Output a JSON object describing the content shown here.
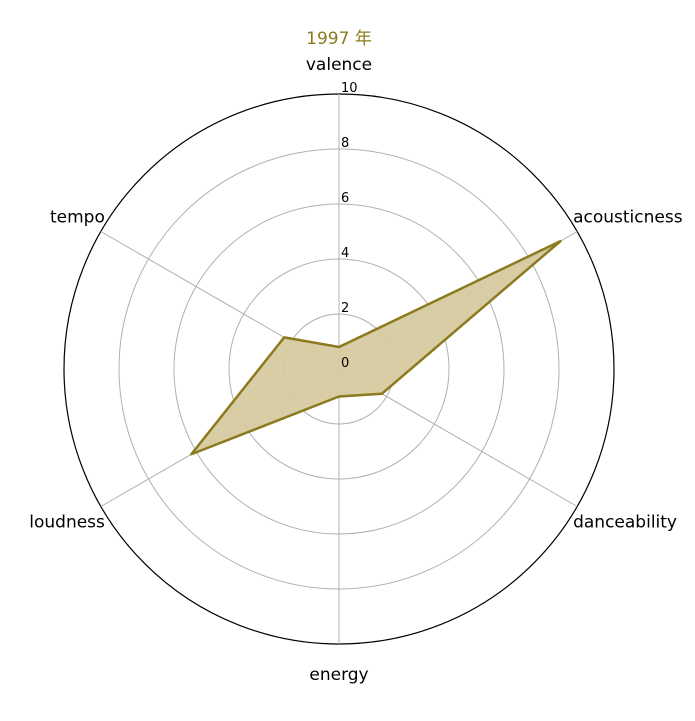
{
  "chart_data": {
    "type": "radar",
    "title": "1997 年",
    "axes": [
      "valence",
      "acousticness",
      "danceability",
      "energy",
      "loudness",
      "tempo"
    ],
    "series": [
      {
        "values": [
          0.8,
          9.3,
          1.8,
          1.0,
          6.2,
          2.3
        ]
      }
    ],
    "rlim": [
      0,
      10
    ],
    "r_ticks": [
      0,
      2,
      4,
      6,
      8,
      10
    ],
    "grid": true,
    "colors": {
      "line": "#8c7a1e",
      "fill": "#d6ca9f",
      "grid": "#b0b0b0",
      "title": "#8c7a1e"
    }
  }
}
